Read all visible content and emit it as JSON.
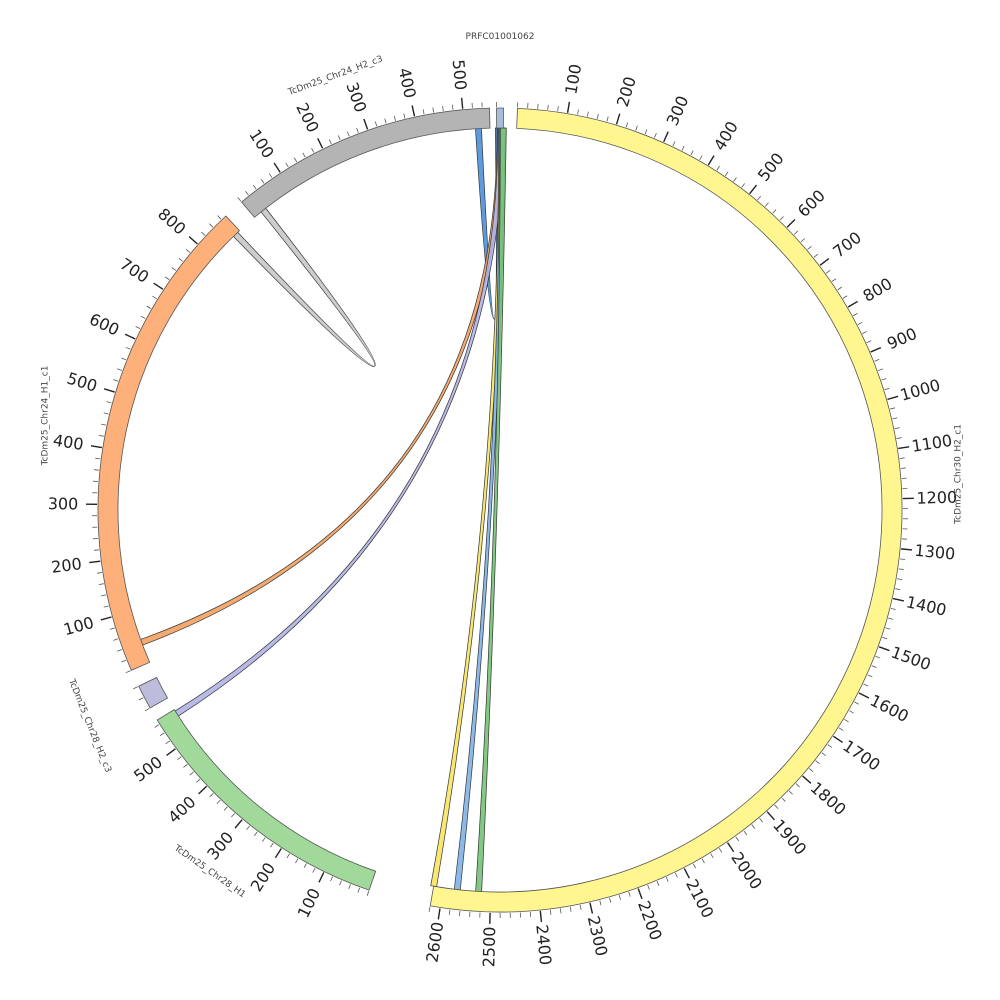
{
  "chart_data": {
    "type": "circos",
    "segments": [
      {
        "id": "prfc",
        "name": "PRFC01001062",
        "length": 8,
        "color": "#a6bddb",
        "ticks": []
      },
      {
        "id": "chr30",
        "name": "TcDm25_Chr30_H2_c1",
        "length": 2620,
        "color": "#fff68f",
        "ticks": [
          "100",
          "200",
          "300",
          "400",
          "500",
          "600",
          "700",
          "800",
          "900",
          "1000",
          "1100",
          "1200",
          "1300",
          "1400",
          "1500",
          "1600",
          "1700",
          "1800",
          "1900",
          "2000",
          "2100",
          "2200",
          "2300",
          "2400",
          "2500",
          "2600"
        ]
      },
      {
        "id": "chr28h1",
        "name": "TcDm25_Chr28_H1",
        "length": 570,
        "color": "#a1d99b",
        "ticks": [
          "100",
          "200",
          "300",
          "400",
          "500"
        ]
      },
      {
        "id": "chr28h2",
        "name": "TcDm25_Chr28_H2_c3",
        "length": 40,
        "color": "#bcbddc",
        "ticks": []
      },
      {
        "id": "chr24h1",
        "name": "TcDm25_Chr24_H1_c1",
        "length": 870,
        "color": "#fdb07a",
        "ticks": [
          "100",
          "200",
          "300",
          "400",
          "500",
          "600",
          "700",
          "800"
        ]
      },
      {
        "id": "chr24h2",
        "name": "TcDm25_Chr24_H2_c3",
        "length": 555,
        "color": "#b4b4b4",
        "ticks": [
          "100",
          "200",
          "300",
          "400",
          "500"
        ]
      }
    ],
    "links": [
      {
        "from": "prfc",
        "from_pos": 2,
        "to": "chr24h2",
        "to_pos": 530,
        "color": "#4a90d9"
      },
      {
        "from": "prfc",
        "from_pos": 4,
        "to": "chr24h1",
        "to_pos": 40,
        "color": "#f4a261"
      },
      {
        "from": "prfc",
        "from_pos": 5,
        "to": "chr28h1",
        "to_pos": 560,
        "color": "#b3b3e6"
      },
      {
        "from": "prfc",
        "from_pos": 6,
        "to": "chr30",
        "to_pos": 2620,
        "color": "#f7e463"
      },
      {
        "from": "prfc",
        "from_pos": 7,
        "to": "chr30",
        "to_pos": 2570,
        "color": "#7fb2e5"
      },
      {
        "from": "chr24h2",
        "from_pos": 25,
        "to": "chr24h1",
        "to_pos": 860,
        "color": "#c8c8c8"
      },
      {
        "from": "prfc",
        "from_pos": 8,
        "to": "chr30",
        "to_pos": 2525,
        "color": "#74c476"
      }
    ]
  }
}
